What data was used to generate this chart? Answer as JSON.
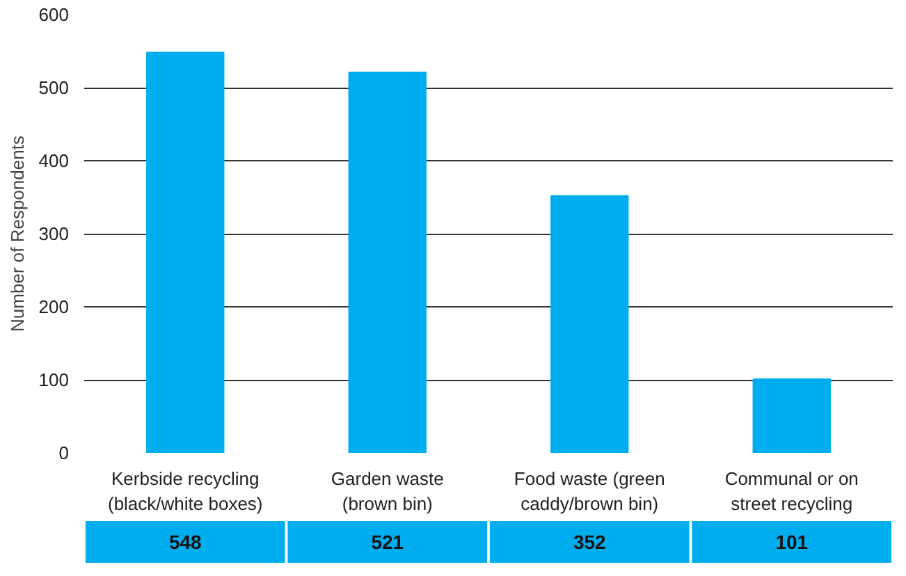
{
  "chart_data": {
    "type": "bar",
    "ylabel": "Number of Respondents",
    "categories": [
      "Kerbside recycling\n(black/white boxes)",
      "Garden waste\n(brown bin)",
      "Food waste (green\ncaddy/brown bin)",
      "Communal or on\nstreet recycling"
    ],
    "values": [
      548,
      521,
      352,
      101
    ],
    "color": "#00aeef",
    "ylim": [
      0,
      600
    ],
    "yticks": [
      0,
      100,
      200,
      300,
      400,
      500,
      600
    ],
    "grid": "y",
    "data_labels": true
  }
}
